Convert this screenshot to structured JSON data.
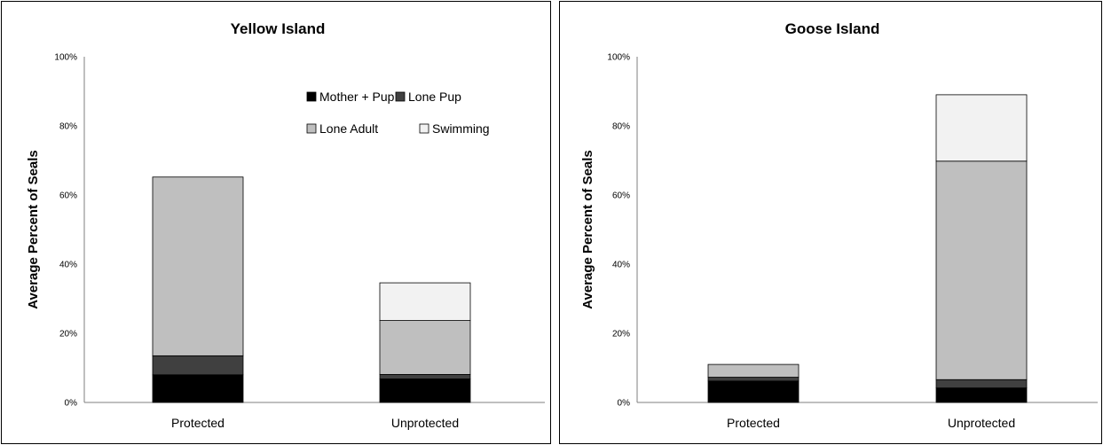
{
  "chart_data": [
    {
      "type": "bar",
      "stacked": true,
      "title": "Yellow Island",
      "ylabel": "Average Percent of Seals",
      "xlabel": "",
      "categories": [
        "Protected",
        "Unprotected"
      ],
      "ylim": [
        0,
        100
      ],
      "yticks": [
        "0%",
        "20%",
        "40%",
        "60%",
        "80%",
        "100%"
      ],
      "grid": false,
      "legend": "top-right",
      "series": [
        {
          "name": "Mother + Pup",
          "color": "#000000",
          "values": [
            8,
            6.8
          ]
        },
        {
          "name": "Lone Pup",
          "color": "#404040",
          "values": [
            5.5,
            1.3
          ]
        },
        {
          "name": "Lone Adult",
          "color": "#bfbfbf",
          "values": [
            51.7,
            15.6
          ]
        },
        {
          "name": "Swimming",
          "color": "#f2f2f2",
          "values": [
            0,
            10.9
          ]
        }
      ]
    },
    {
      "type": "bar",
      "stacked": true,
      "title": "Goose Island",
      "ylabel": "Average Percent of Seals",
      "xlabel": "",
      "categories": [
        "Protected",
        "Unprotected"
      ],
      "ylim": [
        0,
        100
      ],
      "yticks": [
        "0%",
        "20%",
        "40%",
        "60%",
        "80%",
        "100%"
      ],
      "grid": false,
      "legend": "none",
      "series": [
        {
          "name": "Mother + Pup",
          "color": "#000000",
          "values": [
            6.2,
            4.2
          ]
        },
        {
          "name": "Lone Pup",
          "color": "#404040",
          "values": [
            1.1,
            2.4
          ]
        },
        {
          "name": "Lone Adult",
          "color": "#bfbfbf",
          "values": [
            3.7,
            63.2
          ]
        },
        {
          "name": "Swimming",
          "color": "#f2f2f2",
          "values": [
            0,
            19.2
          ]
        }
      ]
    }
  ]
}
